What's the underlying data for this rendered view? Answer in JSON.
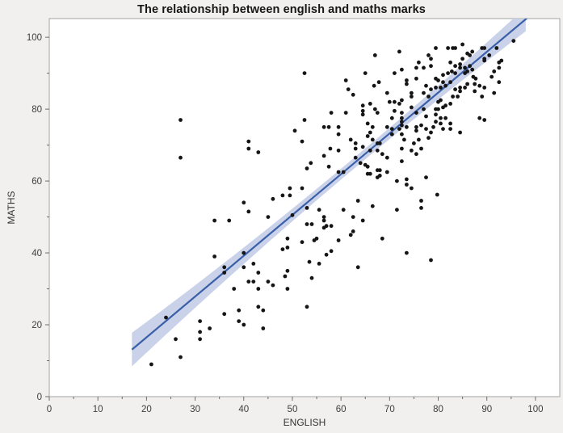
{
  "header": {
    "title": "The relationship between english and maths marks"
  },
  "chart_data": {
    "type": "scatter",
    "title": "The relationship between english and maths marks",
    "xlabel": "ENGLISH",
    "ylabel": "MATHS",
    "xlim": [
      0,
      105
    ],
    "ylim": [
      0,
      105.2
    ],
    "grid": false,
    "legend": null,
    "x_major_ticks": [
      0,
      10,
      20,
      30,
      40,
      50,
      60,
      70,
      80,
      90,
      100
    ],
    "x_minor_ticks": [
      5,
      15,
      25,
      35,
      45,
      55,
      65,
      75,
      85,
      95
    ],
    "y_major_ticks": [
      0,
      20,
      40,
      60,
      80,
      100
    ],
    "y_minor_ticks": [
      10,
      30,
      50,
      70,
      90
    ],
    "regression_line": {
      "x1": 17,
      "y1": 13.1,
      "x2": 98.5,
      "y2": 105.6
    },
    "confidence_band": {
      "half_width_min": 1.5,
      "curvature": 0.0015,
      "center_x": 63
    },
    "colors": {
      "background": "#f1f0ee",
      "plot_background": "#ffffff",
      "frame": "#a3a3a3",
      "tick": "#6b6b6b",
      "dot": "#151515",
      "line": "#3a5fa9",
      "band": "#c9d2e9"
    },
    "points": [
      [
        21,
        9
      ],
      [
        24,
        22
      ],
      [
        26,
        16
      ],
      [
        27,
        11
      ],
      [
        31,
        21
      ],
      [
        31,
        18
      ],
      [
        31,
        16
      ],
      [
        33,
        19
      ],
      [
        27,
        66.5
      ],
      [
        27,
        77
      ],
      [
        34,
        39
      ],
      [
        34,
        49
      ],
      [
        36,
        23
      ],
      [
        39,
        24
      ],
      [
        39,
        21
      ],
      [
        40,
        20
      ],
      [
        43,
        25
      ],
      [
        44,
        24
      ],
      [
        44,
        19
      ],
      [
        38,
        30
      ],
      [
        41,
        32
      ],
      [
        42,
        32
      ],
      [
        43,
        30
      ],
      [
        45,
        32
      ],
      [
        46,
        31
      ],
      [
        48.5,
        33.5
      ],
      [
        49,
        30
      ],
      [
        36,
        36
      ],
      [
        36,
        34.5
      ],
      [
        43,
        34.5
      ],
      [
        40,
        36
      ],
      [
        42,
        37
      ],
      [
        40,
        40
      ],
      [
        48,
        41
      ],
      [
        49,
        41.5
      ],
      [
        49,
        35
      ],
      [
        52,
        43
      ],
      [
        49,
        44
      ],
      [
        37,
        49
      ],
      [
        41,
        51.5
      ],
      [
        45,
        50
      ],
      [
        50,
        50.5
      ],
      [
        40,
        54
      ],
      [
        46,
        55
      ],
      [
        48,
        56
      ],
      [
        49.5,
        56
      ],
      [
        49.5,
        58
      ],
      [
        52,
        58
      ],
      [
        53,
        25
      ],
      [
        54,
        33
      ],
      [
        41,
        69
      ],
      [
        43,
        68
      ],
      [
        41,
        71
      ],
      [
        50.5,
        74
      ],
      [
        52,
        71
      ],
      [
        52.5,
        77
      ],
      [
        52.5,
        90
      ],
      [
        53.5,
        37.5
      ],
      [
        55.5,
        37
      ],
      [
        57,
        39.5
      ],
      [
        58,
        40.5
      ],
      [
        63.5,
        36
      ],
      [
        55,
        44
      ],
      [
        54.5,
        43.5
      ],
      [
        59.5,
        43.5
      ],
      [
        62,
        45
      ],
      [
        62.5,
        46
      ],
      [
        68.5,
        44
      ],
      [
        73.5,
        40
      ],
      [
        78.5,
        38
      ],
      [
        53,
        48
      ],
      [
        54,
        48
      ],
      [
        56.5,
        50
      ],
      [
        56.5,
        49
      ],
      [
        57,
        47.5
      ],
      [
        56.5,
        47
      ],
      [
        58,
        47.5
      ],
      [
        62.5,
        50
      ],
      [
        64.5,
        49
      ],
      [
        66.5,
        53
      ],
      [
        63.5,
        54.5
      ],
      [
        60.5,
        52
      ],
      [
        55.5,
        52
      ],
      [
        53,
        52.5
      ],
      [
        71.5,
        52
      ],
      [
        76.5,
        52.5
      ],
      [
        76.5,
        54.5
      ],
      [
        79.8,
        56.2
      ],
      [
        59.5,
        62.5
      ],
      [
        60.5,
        62.5
      ],
      [
        65.5,
        62
      ],
      [
        66,
        62
      ],
      [
        67.5,
        61
      ],
      [
        71.5,
        60
      ],
      [
        73.5,
        60.5
      ],
      [
        73.5,
        59
      ],
      [
        74.5,
        58
      ],
      [
        77.5,
        61
      ],
      [
        53.8,
        65
      ],
      [
        53,
        63.5
      ],
      [
        56.5,
        67
      ],
      [
        57.5,
        64
      ],
      [
        57.8,
        69
      ],
      [
        59.5,
        68.5
      ],
      [
        63,
        69
      ],
      [
        64.5,
        69.5
      ],
      [
        66,
        68.5
      ],
      [
        67.5,
        68.5
      ],
      [
        68.5,
        67.5
      ],
      [
        69.5,
        66.5
      ],
      [
        72.5,
        69
      ],
      [
        74.5,
        68.5
      ],
      [
        75.5,
        67.5
      ],
      [
        76.5,
        69
      ],
      [
        63,
        66.5
      ],
      [
        64,
        65
      ],
      [
        65,
        64.5
      ],
      [
        65.5,
        64
      ],
      [
        67.5,
        63
      ],
      [
        68,
        63
      ],
      [
        69.5,
        62.5
      ],
      [
        72.5,
        65.5
      ],
      [
        68,
        61.5
      ],
      [
        58,
        79
      ],
      [
        61,
        79
      ],
      [
        56.5,
        75
      ],
      [
        57.5,
        75
      ],
      [
        59.5,
        75
      ],
      [
        59.5,
        73
      ],
      [
        62,
        71.5
      ],
      [
        63,
        70.5
      ],
      [
        65.5,
        76
      ],
      [
        66.5,
        75
      ],
      [
        66,
        73.5
      ],
      [
        65.5,
        72.5
      ],
      [
        66.5,
        71.5
      ],
      [
        67.5,
        70.5
      ],
      [
        68,
        70.5
      ],
      [
        69.5,
        75
      ],
      [
        70.5,
        77.5
      ],
      [
        71,
        79.5
      ],
      [
        72.5,
        79
      ],
      [
        72.5,
        77.5
      ],
      [
        72.5,
        76.5
      ],
      [
        72.5,
        75.5
      ],
      [
        72,
        74.5
      ],
      [
        70.5,
        74.5
      ],
      [
        70.5,
        73
      ],
      [
        72.5,
        73
      ],
      [
        73.5,
        75
      ],
      [
        73,
        71.5
      ],
      [
        75,
        70.5
      ],
      [
        76,
        71.5
      ],
      [
        78,
        72
      ],
      [
        75.5,
        75
      ],
      [
        75.5,
        74
      ],
      [
        76.5,
        75.5
      ],
      [
        77.5,
        74.5
      ],
      [
        78.5,
        73.5
      ],
      [
        79,
        75
      ],
      [
        77.5,
        78
      ],
      [
        75.5,
        79
      ],
      [
        74.5,
        80.5
      ],
      [
        64.5,
        81
      ],
      [
        66,
        81.5
      ],
      [
        67,
        80
      ],
      [
        67.5,
        79
      ],
      [
        64.5,
        79.5
      ],
      [
        64.5,
        78.5
      ],
      [
        61,
        88
      ],
      [
        61.5,
        85.5
      ],
      [
        62.5,
        84
      ],
      [
        65,
        90
      ],
      [
        66.8,
        86.5
      ],
      [
        67.8,
        87.5
      ],
      [
        69.5,
        84.5
      ],
      [
        70,
        82
      ],
      [
        71,
        82
      ],
      [
        72,
        81.5
      ],
      [
        72.5,
        82.5
      ],
      [
        73.5,
        88
      ],
      [
        73.5,
        87
      ],
      [
        71,
        90
      ],
      [
        72.5,
        91
      ],
      [
        67,
        95
      ],
      [
        72,
        96
      ],
      [
        75.5,
        91.5
      ],
      [
        77,
        91.5
      ],
      [
        76,
        93
      ],
      [
        78,
        95
      ],
      [
        78.5,
        94
      ],
      [
        78.5,
        92
      ],
      [
        75.5,
        88.5
      ],
      [
        77.5,
        86.5
      ],
      [
        78.5,
        85.5
      ],
      [
        77,
        84.5
      ],
      [
        78,
        83.5
      ],
      [
        74.5,
        84.5
      ],
      [
        74.5,
        83.5
      ],
      [
        77,
        80
      ],
      [
        79.5,
        97
      ],
      [
        82,
        97
      ],
      [
        83,
        97
      ],
      [
        83.5,
        97
      ],
      [
        85,
        98
      ],
      [
        89,
        97
      ],
      [
        89.5,
        97
      ],
      [
        92,
        97
      ],
      [
        95.5,
        99
      ],
      [
        86.5,
        95
      ],
      [
        86,
        95.5
      ],
      [
        87,
        96
      ],
      [
        90.5,
        95
      ],
      [
        85,
        94
      ],
      [
        89.5,
        94
      ],
      [
        89.5,
        93.5
      ],
      [
        93,
        93.5
      ],
      [
        82.5,
        93
      ],
      [
        83.5,
        92
      ],
      [
        84.5,
        92.5
      ],
      [
        84.5,
        91.5
      ],
      [
        85.5,
        91.5
      ],
      [
        86.5,
        92
      ],
      [
        82.8,
        90.5
      ],
      [
        82,
        90
      ],
      [
        81,
        89.5
      ],
      [
        83.5,
        90
      ],
      [
        85.5,
        90
      ],
      [
        86,
        90.5
      ],
      [
        87,
        91
      ],
      [
        91.5,
        90.5
      ],
      [
        92.5,
        91.5
      ],
      [
        87.2,
        89
      ],
      [
        87.7,
        88.5
      ],
      [
        87.5,
        87
      ],
      [
        79.5,
        88.5
      ],
      [
        80,
        88
      ],
      [
        81,
        87.5
      ],
      [
        82.5,
        87.5
      ],
      [
        81.5,
        86.5
      ],
      [
        80.5,
        86
      ],
      [
        79.5,
        86
      ],
      [
        88.5,
        86.5
      ],
      [
        89.5,
        86
      ],
      [
        91.5,
        84.5
      ],
      [
        92.5,
        87.5
      ],
      [
        91,
        89
      ],
      [
        84.5,
        86
      ],
      [
        84.5,
        85
      ],
      [
        83.5,
        85.5
      ],
      [
        85.5,
        86
      ],
      [
        86,
        87
      ],
      [
        83,
        83.5
      ],
      [
        84,
        83.5
      ],
      [
        80.5,
        82.5
      ],
      [
        80,
        82
      ],
      [
        81.5,
        81
      ],
      [
        82.5,
        81.5
      ],
      [
        81,
        80.5
      ],
      [
        80,
        80
      ],
      [
        79.5,
        80
      ],
      [
        87.5,
        85
      ],
      [
        89,
        83.5
      ],
      [
        79.5,
        78.5
      ],
      [
        80.5,
        77.5
      ],
      [
        81.5,
        77.5
      ],
      [
        79.5,
        76.5
      ],
      [
        80.5,
        76
      ],
      [
        82.5,
        76
      ],
      [
        82.5,
        74.5
      ],
      [
        81,
        74.5
      ],
      [
        84.5,
        73.5
      ],
      [
        88.5,
        77.5
      ],
      [
        89.5,
        77
      ],
      [
        92.5,
        93
      ]
    ]
  }
}
